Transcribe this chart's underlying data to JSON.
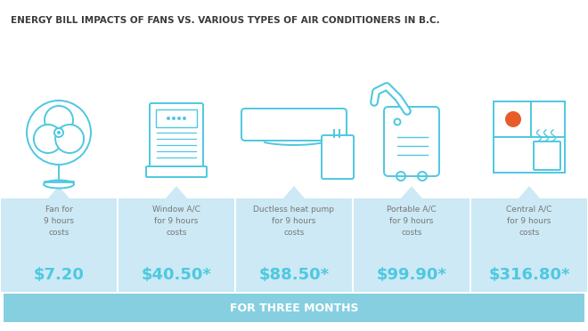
{
  "title": "ENERGY BILL IMPACTS OF FANS VS. VARIOUS TYPES OF AIR CONDITIONERS IN B.C.",
  "title_color": "#3a3a3a",
  "title_fontsize": 7.5,
  "background_color": "#ffffff",
  "panel_color": "#cce9f5",
  "footer_color": "#86cfe0",
  "footer_text": "FOR THREE MONTHS",
  "footer_text_color": "#ffffff",
  "icon_color": "#4ec8e0",
  "price_color": "#4ec8e0",
  "label_color": "#777777",
  "items": [
    {
      "label": "Fan for\n9 hours\ncosts",
      "price": "$7.20"
    },
    {
      "label": "Window A/C\nfor 9 hours\ncosts",
      "price": "$40.50*"
    },
    {
      "label": "Ductless heat pump\nfor 9 hours\ncosts",
      "price": "$88.50*"
    },
    {
      "label": "Portable A/C\nfor 9 hours\ncosts",
      "price": "$99.90*"
    },
    {
      "label": "Central A/C\nfor 9 hours\ncosts",
      "price": "$316.80*"
    }
  ]
}
